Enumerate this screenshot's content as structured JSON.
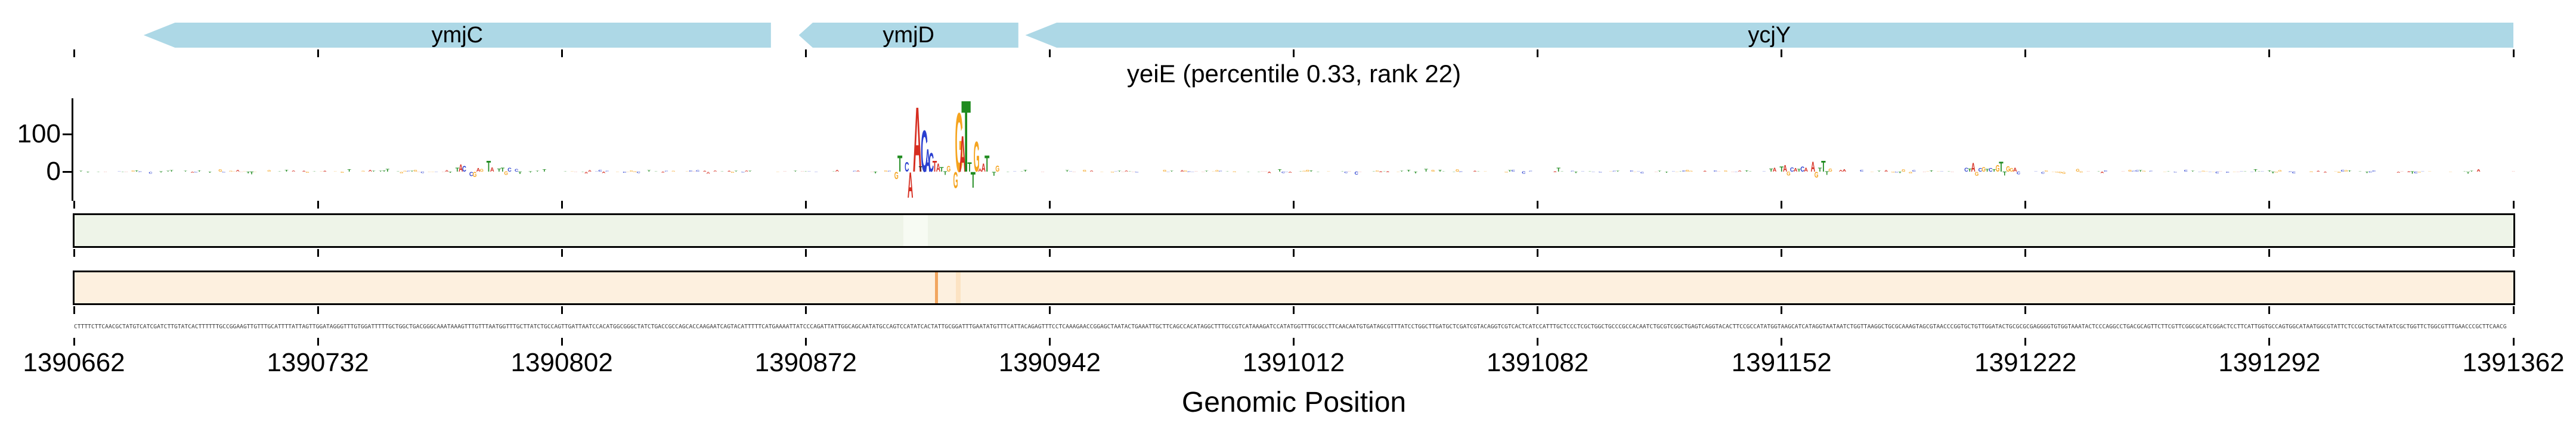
{
  "title": "yeiE (percentile 0.33, rank 22)",
  "xlabel": "Genomic Position",
  "axis": {
    "x_start": 1390662,
    "x_end": 1391362,
    "tick_interval": 70,
    "tick_labels": [
      "1390662",
      "1390732",
      "1390802",
      "1390872",
      "1390942",
      "1391012",
      "1391082",
      "1391152",
      "1391222",
      "1391292",
      "1391362"
    ]
  },
  "genes": [
    {
      "name": "ymjC",
      "label": "ymjC",
      "start": 1390682,
      "end": 1390862,
      "strand": "-",
      "head_bp": 9
    },
    {
      "name": "ymjD",
      "label": "ymjD",
      "start": 1390870,
      "end": 1390933,
      "strand": "-",
      "head_bp": 4
    },
    {
      "name": "ycjY",
      "label": "ycjY",
      "start": 1390935,
      "end": 1391362,
      "strand": "-",
      "head_bp": 9
    }
  ],
  "colors": {
    "gene_fill": "#add8e6",
    "A": "#d62d20",
    "C": "#2a3fd0",
    "G": "#f5a41f",
    "T": "#1f8b1f",
    "track1_fill": "#eef4e8",
    "track2_fill": "#fdf0df",
    "axis_black": "#000000",
    "sequence_text": "#3d3d3d"
  },
  "chart_data": {
    "type": "logo",
    "title": "yeiE (percentile 0.33, rank 22)",
    "xlabel": "Genomic Position",
    "x_range": [
      1390662,
      1391362
    ],
    "ylim": [
      -120,
      200
    ],
    "yticks": [
      {
        "value": 100,
        "label": "100"
      },
      {
        "value": 0,
        "label": "0"
      }
    ],
    "grid": false,
    "motif_letters": [
      {
        "bp": 1390898,
        "letter": "G",
        "h": -20
      },
      {
        "bp": 1390899,
        "letter": "T",
        "h": 45
      },
      {
        "bp": 1390901,
        "letter": "C",
        "h": 26
      },
      {
        "bp": 1390902,
        "letter": "A",
        "h": -70
      },
      {
        "bp": 1390904,
        "letter": "A",
        "h": 178
      },
      {
        "bp": 1390905,
        "letter": "T",
        "h": 15,
        "color": "#333333"
      },
      {
        "bp": 1390906,
        "letter": "C",
        "h": 114
      },
      {
        "bp": 1390907,
        "letter": "A",
        "h": 62,
        "color": "#2a3fd0"
      },
      {
        "bp": 1390908,
        "letter": "C",
        "h": 52
      },
      {
        "bp": 1390909,
        "letter": "T",
        "h": 30,
        "color": "#d62d20"
      },
      {
        "bp": 1390910,
        "letter": "A",
        "h": 22
      },
      {
        "bp": 1390911,
        "letter": "T",
        "h": 13
      },
      {
        "bp": 1390912,
        "letter": "T",
        "h": -9
      },
      {
        "bp": 1390913,
        "letter": "G",
        "h": 16
      },
      {
        "bp": 1390915,
        "letter": "G",
        "h": -44
      },
      {
        "bp": 1390916,
        "letter": "G",
        "h": 162
      },
      {
        "bp": 1390917,
        "letter": "A",
        "h": 99
      },
      {
        "bp": 1390918,
        "letter": "T",
        "h": 196
      },
      {
        "bp": 1390919,
        "letter": "T",
        "h": 25
      },
      {
        "bp": 1390920,
        "letter": "T",
        "h": -43
      },
      {
        "bp": 1390921,
        "letter": "G",
        "h": 83
      },
      {
        "bp": 1390922,
        "letter": "A",
        "h": 8
      },
      {
        "bp": 1390923,
        "letter": "A",
        "h": 22
      },
      {
        "bp": 1390924,
        "letter": "T",
        "h": 44
      },
      {
        "bp": 1390926,
        "letter": "T",
        "h": -11
      },
      {
        "bp": 1390927,
        "letter": "G",
        "h": 17
      }
    ],
    "secondary_letters": [
      {
        "bp": 1390772,
        "letter": "T",
        "h": 10
      },
      {
        "bp": 1390773,
        "letter": "A",
        "h": 20
      },
      {
        "bp": 1390774,
        "letter": "C",
        "h": 16
      },
      {
        "bp": 1390776,
        "letter": "C",
        "h": -12
      },
      {
        "bp": 1390777,
        "letter": "G",
        "h": -14
      },
      {
        "bp": 1390778,
        "letter": "A",
        "h": 9
      },
      {
        "bp": 1390779,
        "letter": "G",
        "h": 7
      },
      {
        "bp": 1390781,
        "letter": "T",
        "h": 30
      },
      {
        "bp": 1390782,
        "letter": "A",
        "h": 12
      },
      {
        "bp": 1390784,
        "letter": "T",
        "h": 8
      },
      {
        "bp": 1390785,
        "letter": "T",
        "h": 10
      },
      {
        "bp": 1390786,
        "letter": "G",
        "h": -9
      },
      {
        "bp": 1390787,
        "letter": "C",
        "h": 11
      },
      {
        "bp": 1390789,
        "letter": "C",
        "h": 7
      },
      {
        "bp": 1390790,
        "letter": "T",
        "h": -6
      },
      {
        "bp": 1391149,
        "letter": "T",
        "h": 8
      },
      {
        "bp": 1391150,
        "letter": "A",
        "h": 10
      },
      {
        "bp": 1391152,
        "letter": "T",
        "h": 14
      },
      {
        "bp": 1391153,
        "letter": "A",
        "h": 18
      },
      {
        "bp": 1391154,
        "letter": "G",
        "h": -10
      },
      {
        "bp": 1391155,
        "letter": "C",
        "h": 12
      },
      {
        "bp": 1391156,
        "letter": "A",
        "h": 9
      },
      {
        "bp": 1391157,
        "letter": "T",
        "h": 7
      },
      {
        "bp": 1391158,
        "letter": "C",
        "h": 14
      },
      {
        "bp": 1391159,
        "letter": "A",
        "h": 10
      },
      {
        "bp": 1391161,
        "letter": "A",
        "h": 28
      },
      {
        "bp": 1391162,
        "letter": "G",
        "h": -16
      },
      {
        "bp": 1391163,
        "letter": "T",
        "h": 10
      },
      {
        "bp": 1391164,
        "letter": "T",
        "h": 30
      },
      {
        "bp": 1391165,
        "letter": "T",
        "h": -9
      },
      {
        "bp": 1391166,
        "letter": "G",
        "h": 8
      },
      {
        "bp": 1391205,
        "letter": "C",
        "h": 10
      },
      {
        "bp": 1391206,
        "letter": "T",
        "h": 8
      },
      {
        "bp": 1391207,
        "letter": "A",
        "h": 24
      },
      {
        "bp": 1391208,
        "letter": "G",
        "h": -11
      },
      {
        "bp": 1391209,
        "letter": "C",
        "h": 9
      },
      {
        "bp": 1391210,
        "letter": "G",
        "h": 13
      },
      {
        "bp": 1391211,
        "letter": "T",
        "h": 7
      },
      {
        "bp": 1391212,
        "letter": "C",
        "h": 9
      },
      {
        "bp": 1391213,
        "letter": "T",
        "h": 6
      },
      {
        "bp": 1391214,
        "letter": "G",
        "h": 18
      },
      {
        "bp": 1391215,
        "letter": "T",
        "h": 27
      },
      {
        "bp": 1391216,
        "letter": "T",
        "h": -10
      },
      {
        "bp": 1391217,
        "letter": "G",
        "h": 15
      },
      {
        "bp": 1391218,
        "letter": "G",
        "h": 9
      },
      {
        "bp": 1391219,
        "letter": "A",
        "h": 11
      },
      {
        "bp": 1391220,
        "letter": "C",
        "h": -7
      }
    ],
    "noise": {
      "seed": 13,
      "max_height": 6,
      "down_fraction": 0.42
    }
  },
  "tracks": [
    {
      "name": "track-green",
      "fill": "#eef4e8",
      "bands": [
        {
          "bp": 1390900,
          "width_bp": 7,
          "color": "#f7fbf3",
          "opacity": 1
        }
      ]
    },
    {
      "name": "track-orange",
      "fill": "#fdf0df",
      "bands": [
        {
          "bp": 1390909,
          "width_bp": 1,
          "color": "#f1a65f",
          "opacity": 1
        },
        {
          "bp": 1390915,
          "width_bp": 1.5,
          "color": "#fce3c3",
          "opacity": 1
        }
      ]
    }
  ],
  "sequence": "CTTTTCTTCAACGCTATGTCATCGATCTTGTATCACTTTTTTGCCGGAAGTTGTTTGCATTTTATTAGTTGGATAGGGTTTGTGGATTTTTGCTGGCTGACGGGCAAATAAAGTTTGTTTAATGGTTTGCTTATCTGCCAGTTGATTAATCCACATGGCGGGCTATCTGACCGCCAGCACCAAGAATCAGTACATTTTTCATGAAAATTATCCCAGATTATTGGCAGCAATATGCCAGTCCATATCACTATTGCGGATTTGAATATGTTTCATTACAGAGTTTCCTCAAAGAACCGGAGCTAATACTGAAATTGCTTCAGCCACATAGGCTTTGCCGTCATAAAGATCCATATGGTTTGCGCCTTCAACAATGTGATAGCGTTTATCCTGGCTTGATGCTCGATCGTACAGGTCGTCACTCATCCATTTGCTCCCTCGCTGGCTGCCCGCCACAATCTGCGTCGGCTGAGTCAGGTACACTTCCGCCATATGGTAAGCATCATAGGTAATAATCTGGTTAAGGCTGCGCAAAGTAGCGTAACCCGGTGCTGTTGGATACTGCGCGCGAGGGGTGTGGTAAATACTCCCAGGCCTGACGCAGTTCTTCGTTCGGCGCATCGGACTCCTTCATTGGTGCCAGTGGCATAATGGCGTATTCTCCGCTGCTAATATCGCTGGTTCTGGCGTTTGAACCCGCTTCAACG"
}
